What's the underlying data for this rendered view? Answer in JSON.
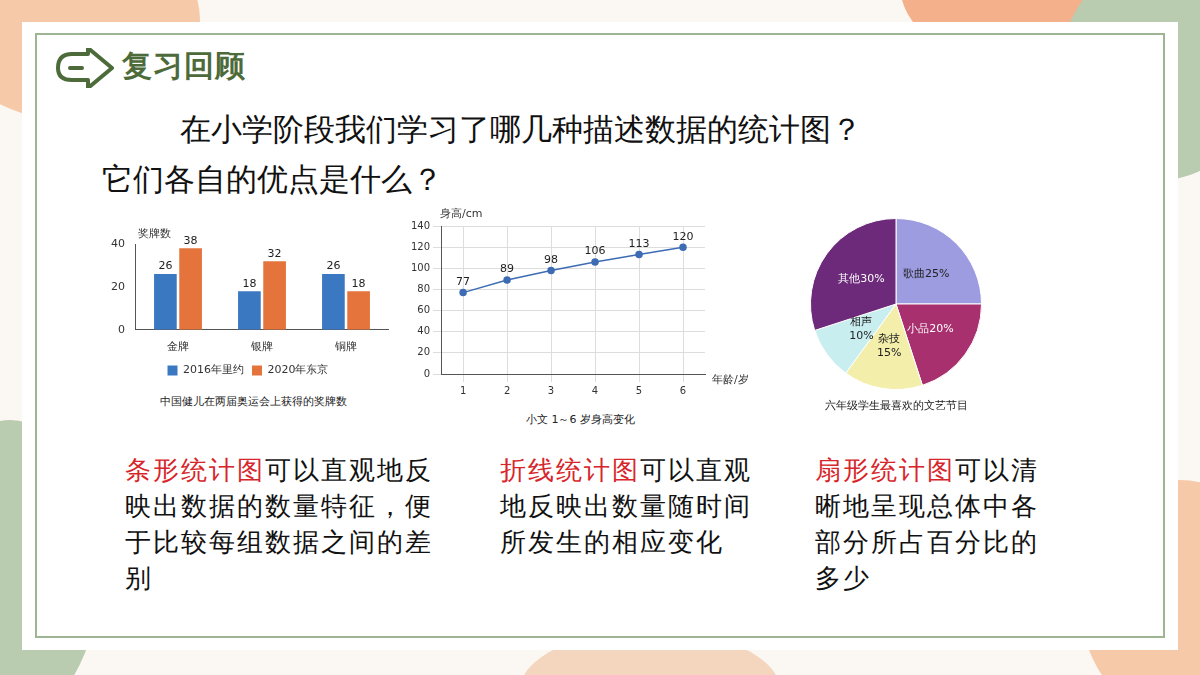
{
  "header": {
    "title": "复习回顾"
  },
  "question": [
    "在小学阶段我们学习了哪几种描述数据的统计图？",
    "它们各自的优点是什么？"
  ],
  "chart_data": [
    {
      "type": "bar",
      "title": "中国健儿在两届奥运会上获得的奖牌数",
      "y_label": "奖牌数",
      "categories": [
        "金牌",
        "银牌",
        "铜牌"
      ],
      "series": [
        {
          "name": "2016年里约",
          "color": "#3b78c2",
          "values": [
            26,
            18,
            26
          ]
        },
        {
          "name": "2020年东京",
          "color": "#e5743c",
          "values": [
            38,
            32,
            18
          ]
        }
      ],
      "ylim": [
        0,
        40
      ],
      "yticks": [
        0,
        20,
        40
      ],
      "grid": false,
      "legend": "bottom",
      "data_labels": true
    },
    {
      "type": "line",
      "title": "小文 1～6 岁身高变化",
      "x_label": "年龄/岁",
      "y_label": "身高/cm",
      "x": [
        1,
        2,
        3,
        4,
        5,
        6
      ],
      "values": [
        77,
        89,
        98,
        106,
        113,
        120
      ],
      "color": "#3d6cb4",
      "marker": "circle",
      "xlim": [
        0.5,
        6.5
      ],
      "xticks": [
        1,
        2,
        3,
        4,
        5,
        6
      ],
      "ylim": [
        0,
        140
      ],
      "yticks": [
        0,
        20,
        40,
        60,
        80,
        100,
        120,
        140
      ],
      "grid": true,
      "data_labels": true
    },
    {
      "type": "pie",
      "title": "六年级学生最喜欢的文艺节目",
      "categories": [
        "歌曲",
        "小品",
        "杂技",
        "相声",
        "其他"
      ],
      "values": [
        25,
        20,
        15,
        10,
        30
      ],
      "value_labels": [
        "歌曲25%",
        "小品20%",
        "杂技15%",
        "相声10%",
        "其他30%"
      ],
      "colors": [
        "#9d9ce0",
        "#a8306e",
        "#f3eeaa",
        "#c9eef0",
        "#6d2a7b"
      ],
      "data_labels": true
    }
  ],
  "notes": [
    {
      "term": "条形统计图",
      "text": "可以直观地反映出数据的数量特征，便于比较每组数据之间的差别"
    },
    {
      "term": "折线统计图",
      "text": "可以直观地反映出数量随时间所发生的相应变化"
    },
    {
      "term": "扇形统计图",
      "text": "可以清晰地呈现总体中各部分所占百分比的多少"
    }
  ]
}
